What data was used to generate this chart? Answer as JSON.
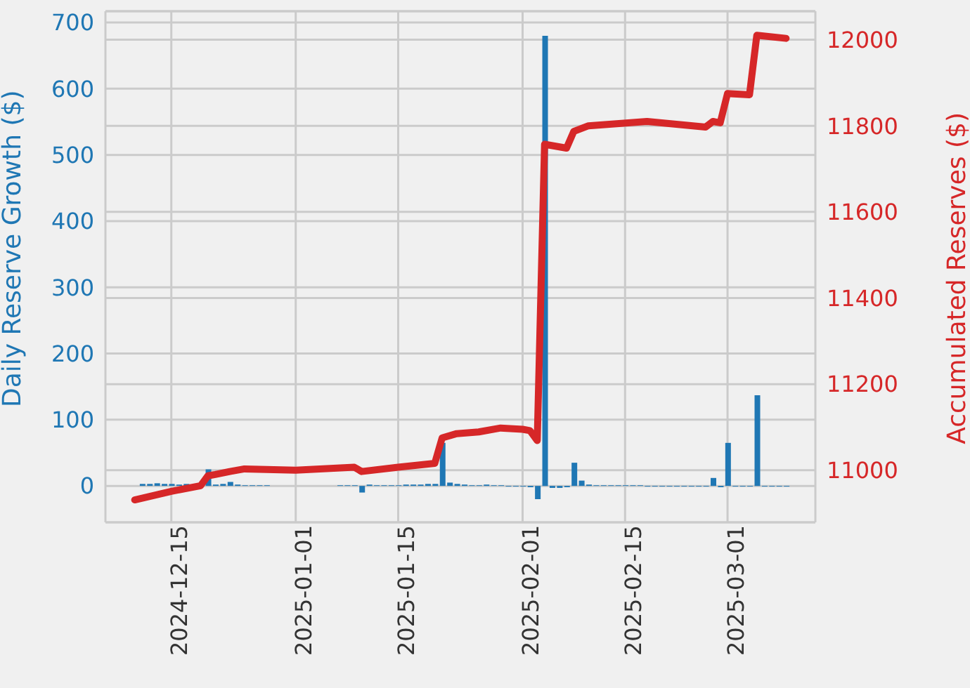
{
  "chart_data": {
    "type": "bar",
    "ylabel": "Daily Reserve Growth ($)",
    "y2label": "Accumulated Reserves ($)",
    "x": [
      "2024-12-11",
      "2024-12-12",
      "2024-12-13",
      "2024-12-14",
      "2024-12-15",
      "2024-12-16",
      "2024-12-17",
      "2024-12-18",
      "2024-12-19",
      "2024-12-20",
      "2024-12-21",
      "2024-12-22",
      "2024-12-23",
      "2024-12-24",
      "2024-12-25",
      "2024-12-26",
      "2024-12-27",
      "2024-12-28",
      "2024-12-29",
      "2024-12-30",
      "2024-12-31",
      "2025-01-01",
      "2025-01-02",
      "2025-01-03",
      "2025-01-04",
      "2025-01-05",
      "2025-01-06",
      "2025-01-07",
      "2025-01-08",
      "2025-01-09",
      "2025-01-10",
      "2025-01-11",
      "2025-01-12",
      "2025-01-13",
      "2025-01-14",
      "2025-01-15",
      "2025-01-16",
      "2025-01-17",
      "2025-01-18",
      "2025-01-19",
      "2025-01-20",
      "2025-01-21",
      "2025-01-22",
      "2025-01-23",
      "2025-01-24",
      "2025-01-25",
      "2025-01-26",
      "2025-01-27",
      "2025-01-28",
      "2025-01-29",
      "2025-01-30",
      "2025-01-31",
      "2025-02-01",
      "2025-02-02",
      "2025-02-03",
      "2025-02-04",
      "2025-02-05",
      "2025-02-06",
      "2025-02-07",
      "2025-02-08",
      "2025-02-09",
      "2025-02-10",
      "2025-02-11",
      "2025-02-12",
      "2025-02-13",
      "2025-02-14",
      "2025-02-15",
      "2025-02-16",
      "2025-02-17",
      "2025-02-18",
      "2025-02-19",
      "2025-02-20",
      "2025-02-21",
      "2025-02-22",
      "2025-02-23",
      "2025-02-24",
      "2025-02-25",
      "2025-02-26",
      "2025-02-27",
      "2025-02-28",
      "2025-03-01",
      "2025-03-02",
      "2025-03-03",
      "2025-03-04",
      "2025-03-05",
      "2025-03-06",
      "2025-03-07",
      "2025-03-08",
      "2025-03-09"
    ],
    "series": [
      {
        "color": "#1f77b4",
        "values": [
          3,
          3,
          4,
          3,
          3,
          2,
          3,
          null,
          3,
          25,
          2,
          3,
          6,
          2,
          1,
          1,
          1,
          1,
          0,
          0,
          0,
          0,
          0,
          0,
          0,
          0,
          0,
          1,
          1,
          1,
          -10,
          2,
          1,
          1,
          1,
          1,
          2,
          2,
          2,
          3,
          3,
          65,
          5,
          3,
          2,
          1,
          1,
          2,
          1,
          1,
          -1,
          -1,
          -1,
          -2,
          -20,
          680,
          -3,
          -3,
          -2,
          35,
          8,
          2,
          1,
          1,
          1,
          1,
          1,
          1,
          1,
          -1,
          -1,
          -1,
          -1,
          -1,
          -1,
          -1,
          -1,
          -1,
          12,
          -2,
          65,
          -1,
          -1,
          -1,
          137,
          -1,
          -1,
          -1,
          -1
        ]
      },
      {
        "type": "line",
        "axis": "y2",
        "color": "#d62728",
        "x": [
          "2024-12-10",
          "2024-12-15",
          "2024-12-19",
          "2024-12-20",
          "2024-12-21",
          "2024-12-23",
          "2024-12-25",
          "2025-01-01",
          "2025-01-09",
          "2025-01-10",
          "2025-01-15",
          "2025-01-20",
          "2025-01-21",
          "2025-01-23",
          "2025-01-26",
          "2025-01-29",
          "2025-02-01",
          "2025-02-02",
          "2025-02-03",
          "2025-02-04",
          "2025-02-07",
          "2025-02-08",
          "2025-02-10",
          "2025-02-18",
          "2025-02-26",
          "2025-02-27",
          "2025-02-28",
          "2025-03-01",
          "2025-03-04",
          "2025-03-05",
          "2025-03-09"
        ],
        "values": [
          10931,
          10951,
          10964,
          10987,
          10990,
          10997,
          11003,
          11000,
          11007,
          10997,
          11007,
          11016,
          11075,
          11085,
          11089,
          11098,
          11095,
          11092,
          11069,
          11757,
          11748,
          11787,
          11800,
          11810,
          11797,
          11810,
          11807,
          11875,
          11872,
          12010,
          12003
        ]
      }
    ],
    "xlim": [
      "2024-12-06",
      "2025-03-13"
    ],
    "xticks": [
      "2024-12-15",
      "2025-01-01",
      "2025-01-15",
      "2025-02-01",
      "2025-02-15",
      "2025-03-01"
    ],
    "ylim": [
      -55,
      717
    ],
    "yticks": [
      0,
      100,
      200,
      300,
      400,
      500,
      600,
      700
    ],
    "y2lim": [
      10879,
      12066
    ],
    "y2ticks": [
      11000,
      11200,
      11400,
      11600,
      11800,
      12000
    ],
    "grid": true,
    "line_style": "solid",
    "marker": "none"
  }
}
